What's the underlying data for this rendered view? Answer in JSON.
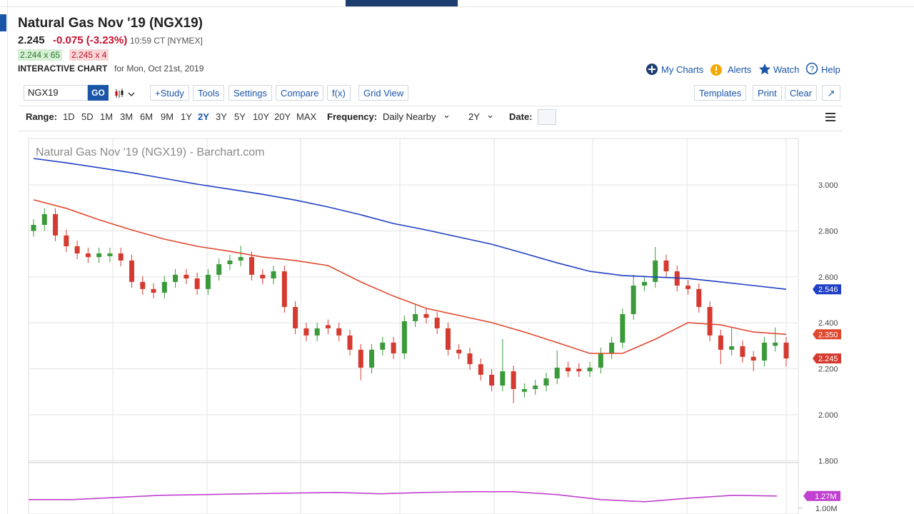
{
  "header": {
    "title": "Natural Gas Nov '19 (NGX19)",
    "last": "2.245",
    "change": "-0.075 (-3.23%)",
    "time": "10:59 CT [NYMEX]",
    "bid": "2.244 x 65",
    "ask": "2.245 x 4",
    "chart_label": "INTERACTIVE CHART",
    "chart_date": "for Mon, Oct 21st, 2019"
  },
  "links": [
    "My Charts",
    "Alerts",
    "Watch",
    "Help"
  ],
  "toolbar": {
    "symbol": "NGX19",
    "go": "GO",
    "buttons": [
      "+Study",
      "Tools",
      "Settings",
      "Compare",
      "f(x)",
      "Grid View"
    ],
    "right_buttons": [
      "Templates",
      "Print",
      "Clear"
    ]
  },
  "range_bar": {
    "range_label": "Range:",
    "ranges": [
      "1D",
      "5D",
      "1M",
      "3M",
      "6M",
      "9M",
      "1Y",
      "2Y",
      "3Y",
      "5Y",
      "10Y",
      "20Y",
      "MAX"
    ],
    "active_range": 7,
    "frequency_label": "Frequency:",
    "frequency": "Daily Nearby",
    "period": "2Y",
    "date_label": "Date:"
  },
  "chart_data": {
    "type": "candlestick",
    "title": "Natural Gas Nov '19 (NGX19) - Barchart.com",
    "up_color": "#3a9a3a",
    "down_color": "#d43a2f",
    "ohlc": [
      [
        2.8,
        2.851,
        2.775,
        2.826
      ],
      [
        2.826,
        2.898,
        2.801,
        2.873
      ],
      [
        2.873,
        2.898,
        2.755,
        2.78
      ],
      [
        2.78,
        2.805,
        2.708,
        2.733
      ],
      [
        2.733,
        2.758,
        2.677,
        2.702
      ],
      [
        2.702,
        2.727,
        2.661,
        2.686
      ],
      [
        2.686,
        2.727,
        2.661,
        2.702
      ],
      [
        2.69,
        2.727,
        2.665,
        2.702
      ],
      [
        2.702,
        2.727,
        2.646,
        2.671
      ],
      [
        2.671,
        2.696,
        2.553,
        2.578
      ],
      [
        2.578,
        2.603,
        2.522,
        2.547
      ],
      [
        2.547,
        2.572,
        2.506,
        2.531
      ],
      [
        2.531,
        2.603,
        2.506,
        2.578
      ],
      [
        2.578,
        2.634,
        2.553,
        2.609
      ],
      [
        2.609,
        2.634,
        2.568,
        2.593
      ],
      [
        2.593,
        2.618,
        2.522,
        2.547
      ],
      [
        2.547,
        2.634,
        2.522,
        2.609
      ],
      [
        2.609,
        2.68,
        2.584,
        2.655
      ],
      [
        2.655,
        2.696,
        2.63,
        2.671
      ],
      [
        2.671,
        2.735,
        2.646,
        2.686
      ],
      [
        2.686,
        2.711,
        2.584,
        2.609
      ],
      [
        2.609,
        2.634,
        2.568,
        2.593
      ],
      [
        2.593,
        2.649,
        2.568,
        2.624
      ],
      [
        2.624,
        2.649,
        2.444,
        2.469
      ],
      [
        2.469,
        2.494,
        2.351,
        2.376
      ],
      [
        2.376,
        2.401,
        2.32,
        2.345
      ],
      [
        2.345,
        2.401,
        2.32,
        2.376
      ],
      [
        2.39,
        2.415,
        2.351,
        2.376
      ],
      [
        2.376,
        2.401,
        2.32,
        2.345
      ],
      [
        2.345,
        2.37,
        2.258,
        2.283
      ],
      [
        2.283,
        2.308,
        2.15,
        2.205
      ],
      [
        2.205,
        2.308,
        2.18,
        2.283
      ],
      [
        2.283,
        2.339,
        2.258,
        2.314
      ],
      [
        2.314,
        2.339,
        2.242,
        2.267
      ],
      [
        2.267,
        2.432,
        2.242,
        2.407
      ],
      [
        2.407,
        2.48,
        2.382,
        2.438
      ],
      [
        2.438,
        2.463,
        2.397,
        2.422
      ],
      [
        2.422,
        2.447,
        2.351,
        2.376
      ],
      [
        2.376,
        2.401,
        2.258,
        2.283
      ],
      [
        2.283,
        2.308,
        2.242,
        2.267
      ],
      [
        2.267,
        2.292,
        2.195,
        2.22
      ],
      [
        2.22,
        2.245,
        2.149,
        2.174
      ],
      [
        2.174,
        2.199,
        2.102,
        2.127
      ],
      [
        2.127,
        2.33,
        2.102,
        2.189
      ],
      [
        2.189,
        2.214,
        2.05,
        2.112
      ],
      [
        2.1,
        2.137,
        2.075,
        2.112
      ],
      [
        2.112,
        2.152,
        2.087,
        2.127
      ],
      [
        2.127,
        2.183,
        2.102,
        2.158
      ],
      [
        2.158,
        2.28,
        2.133,
        2.205
      ],
      [
        2.205,
        2.23,
        2.164,
        2.189
      ],
      [
        2.2,
        2.225,
        2.164,
        2.189
      ],
      [
        2.189,
        2.23,
        2.164,
        2.205
      ],
      [
        2.205,
        2.292,
        2.18,
        2.267
      ],
      [
        2.267,
        2.339,
        2.242,
        2.314
      ],
      [
        2.314,
        2.463,
        2.289,
        2.438
      ],
      [
        2.438,
        2.61,
        2.413,
        2.562
      ],
      [
        2.562,
        2.603,
        2.537,
        2.578
      ],
      [
        2.578,
        2.73,
        2.553,
        2.671
      ],
      [
        2.671,
        2.696,
        2.599,
        2.624
      ],
      [
        2.624,
        2.649,
        2.537,
        2.562
      ],
      [
        2.562,
        2.587,
        2.522,
        2.547
      ],
      [
        2.547,
        2.572,
        2.444,
        2.469
      ],
      [
        2.469,
        2.494,
        2.32,
        2.345
      ],
      [
        2.345,
        2.37,
        2.22,
        2.283
      ],
      [
        2.283,
        2.38,
        2.258,
        2.298
      ],
      [
        2.298,
        2.323,
        2.227,
        2.252
      ],
      [
        2.252,
        2.277,
        2.19,
        2.236
      ],
      [
        2.236,
        2.339,
        2.211,
        2.314
      ],
      [
        2.3,
        2.38,
        2.275,
        2.314
      ],
      [
        2.314,
        2.339,
        2.21,
        2.245
      ]
    ],
    "series": [
      {
        "color": "#1f3fc4",
        "values": [
          3.115,
          3.096,
          3.075,
          3.053,
          3.028,
          3.003,
          2.981,
          2.959,
          2.934,
          2.904,
          2.87,
          2.832,
          2.804,
          2.773,
          2.742,
          2.702,
          2.661,
          2.624,
          2.606,
          2.599,
          2.593,
          2.578,
          2.562,
          2.546
        ]
      },
      {
        "color": "#e0482e",
        "values": [
          2.935,
          2.898,
          2.848,
          2.804,
          2.764,
          2.733,
          2.711,
          2.686,
          2.671,
          2.649,
          2.578,
          2.516,
          2.463,
          2.432,
          2.401,
          2.36,
          2.314,
          2.267,
          2.267,
          2.329,
          2.401,
          2.391,
          2.36,
          2.35
        ]
      }
    ],
    "tags": [
      {
        "value": 2.546,
        "label": "2.546",
        "color": "#1f3fc4"
      },
      {
        "value": 2.35,
        "label": "2.350",
        "color": "#e0482e"
      },
      {
        "value": 2.245,
        "label": "2.245",
        "color": "#d43a2f"
      }
    ],
    "ylim": [
      1.8,
      3.2
    ],
    "yticks": [
      {
        "value": 1.8,
        "label": "1.800"
      },
      {
        "value": 2.0,
        "label": "2.000"
      },
      {
        "value": 2.2,
        "label": "2.200"
      },
      {
        "value": 2.4,
        "label": "2.400"
      },
      {
        "value": 2.6,
        "label": "2.600"
      },
      {
        "value": 2.8,
        "label": "2.800"
      },
      {
        "value": 3.0,
        "label": "3.000"
      }
    ],
    "grid": true,
    "volume": {
      "type": "line",
      "color": "#c040d0",
      "values": [
        1190000,
        1190000,
        1238000,
        1286000,
        1302000,
        1318000,
        1334000,
        1349000,
        1318000,
        1349000,
        1365000,
        1365000,
        1302000,
        1190000,
        1143000,
        1222000,
        1286000,
        1270000
      ],
      "ylim": [
        870000,
        1980000
      ],
      "yticks": [
        {
          "value": 1000000,
          "label": "1.00M"
        }
      ],
      "tag": {
        "value": 1270000,
        "label": "1.27M"
      }
    }
  }
}
